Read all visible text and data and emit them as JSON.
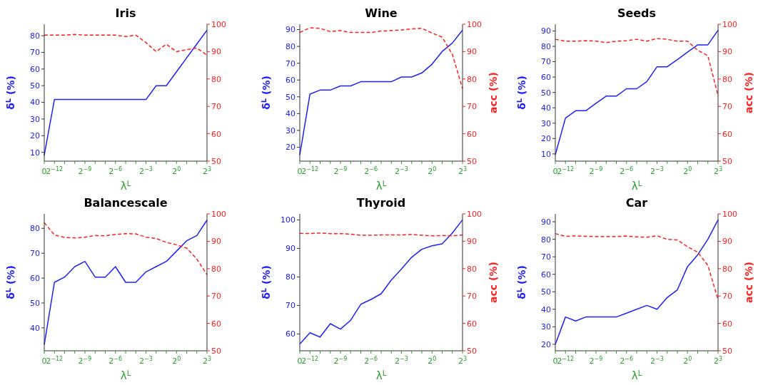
{
  "chart_data": [
    {
      "type": "line",
      "title": "Iris",
      "xlabel": "λ$^{L}$",
      "ylabel": "δ$^{L}$ (%)",
      "categories": [
        "0",
        "2$^{−12}$",
        null,
        null,
        "2$^{−9}$",
        null,
        null,
        "2$^{−6}$",
        null,
        null,
        "2$^{−3}$",
        null,
        null,
        "2$^{0}$",
        null,
        null,
        "2$^{3}$"
      ],
      "ylim": [
        4.7,
        86.9
      ],
      "yticks": [
        10,
        20,
        30,
        40,
        50,
        60,
        70,
        80
      ],
      "y2lim": [
        50,
        100
      ],
      "y2ticks": [
        50,
        60,
        70,
        80,
        90,
        100
      ],
      "grid": false,
      "legend": false,
      "marker": "none",
      "series": [
        {
          "color": "#2020ff",
          "line_style": "solid",
          "values": [
            8.3,
            41.7,
            41.7,
            41.7,
            41.7,
            41.7,
            41.7,
            41.7,
            41.7,
            41.7,
            41.7,
            50,
            50,
            58.3,
            66.7,
            75,
            83.3
          ]
        },
        {
          "color": "#ff2020",
          "line_style": "dashed",
          "axis": "y2",
          "values": [
            96,
            96,
            96,
            96.3,
            96,
            96,
            96,
            96,
            95.5,
            96,
            93.3,
            90,
            92.7,
            90,
            90.7,
            91.3,
            88.7
          ]
        }
      ]
    },
    {
      "type": "line",
      "title": "Wine",
      "xlabel": "λ$^{L}$",
      "ylabel": "δ$^{L}$ (%)",
      "y2label": "acc (%)",
      "categories": [
        "0",
        "2$^{−12}$",
        null,
        null,
        "2$^{−9}$",
        null,
        null,
        "2$^{−6}$",
        null,
        null,
        "2$^{−3}$",
        null,
        null,
        "2$^{0}$",
        null,
        null,
        "2$^{3}$"
      ],
      "ylim": [
        11.7,
        93.2
      ],
      "yticks": [
        20,
        30,
        40,
        50,
        60,
        70,
        80,
        90
      ],
      "y2lim": [
        50,
        100
      ],
      "y2ticks": [
        50,
        60,
        70,
        80,
        90,
        100
      ],
      "grid": false,
      "legend": false,
      "marker": "none",
      "series": [
        {
          "color": "#2020ff",
          "line_style": "solid",
          "values": [
            15.4,
            51.6,
            54,
            54,
            56.5,
            56.5,
            59,
            59,
            59,
            59,
            61.8,
            61.8,
            64.2,
            69.4,
            77,
            82,
            89.7
          ]
        },
        {
          "color": "#ff2020",
          "line_style": "dashed",
          "axis": "y2",
          "values": [
            97,
            98.7,
            98.5,
            97.3,
            97.7,
            97,
            97,
            97,
            97.5,
            97.7,
            97.9,
            98.3,
            98.5,
            96.8,
            95.3,
            89,
            76.5
          ]
        }
      ]
    },
    {
      "type": "line",
      "title": "Seeds",
      "xlabel": "λ$^{L}$",
      "ylabel": "δ$^{L}$ (%)",
      "y2label": "acc (%)",
      "categories": [
        "0",
        "2$^{−12}$",
        null,
        null,
        "2$^{−9}$",
        null,
        null,
        "2$^{−6}$",
        null,
        null,
        "2$^{−3}$",
        null,
        null,
        "2$^{0}$",
        null,
        null,
        "2$^{3}$"
      ],
      "ylim": [
        5.3,
        94.4
      ],
      "yticks": [
        10,
        20,
        30,
        40,
        50,
        60,
        70,
        80,
        90
      ],
      "y2lim": [
        50,
        100
      ],
      "y2ticks": [
        50,
        60,
        70,
        80,
        90,
        100
      ],
      "grid": false,
      "legend": false,
      "marker": "none",
      "series": [
        {
          "color": "#2020ff",
          "line_style": "solid",
          "values": [
            9.5,
            33.3,
            38.1,
            38.1,
            42.9,
            47.6,
            47.6,
            52.4,
            52.4,
            57.1,
            66.7,
            66.7,
            71.4,
            76.2,
            81,
            81,
            90.5
          ]
        },
        {
          "color": "#ff2020",
          "line_style": "dashed",
          "axis": "y2",
          "values": [
            94.5,
            93.8,
            93.8,
            94,
            93.8,
            93.3,
            93.8,
            94,
            94.5,
            93.8,
            94.8,
            94.5,
            93.8,
            93.8,
            90.5,
            88.5,
            73.8
          ]
        }
      ]
    },
    {
      "type": "line",
      "title": "Balancescale",
      "xlabel": "λ$^{L}$",
      "ylabel": "δ$^{L}$ (%)",
      "categories": [
        "0",
        "2$^{−12}$",
        null,
        null,
        "2$^{−9}$",
        null,
        null,
        "2$^{−6}$",
        null,
        null,
        "2$^{−3}$",
        null,
        null,
        "2$^{0}$",
        null,
        null,
        "2$^{3}$"
      ],
      "ylim": [
        30.8,
        85.8
      ],
      "yticks": [
        40,
        50,
        60,
        70,
        80
      ],
      "y2lim": [
        50,
        100
      ],
      "y2ticks": [
        50,
        60,
        70,
        80,
        90,
        100
      ],
      "grid": false,
      "legend": false,
      "marker": "none",
      "series": [
        {
          "color": "#2020ff",
          "line_style": "solid",
          "values": [
            33.3,
            58.3,
            60.4,
            64.6,
            66.7,
            60.4,
            60.4,
            64.6,
            58.3,
            58.3,
            62.5,
            64.6,
            66.7,
            70.8,
            75,
            77.1,
            83.3
          ]
        },
        {
          "color": "#ff2020",
          "line_style": "dashed",
          "axis": "y2",
          "values": [
            96.8,
            92.3,
            91.4,
            91.2,
            91.5,
            92.1,
            92,
            92.5,
            92.8,
            92.7,
            91.5,
            91,
            89.6,
            88.7,
            87.5,
            83.5,
            77.8
          ]
        }
      ]
    },
    {
      "type": "line",
      "title": "Thyroid",
      "xlabel": "λ$^{L}$",
      "ylabel": "δ$^{L}$ (%)",
      "y2label": "acc (%)",
      "categories": [
        "0",
        "2$^{−12}$",
        null,
        null,
        "2$^{−9}$",
        null,
        null,
        "2$^{−6}$",
        null,
        null,
        "2$^{−3}$",
        null,
        null,
        "2$^{0}$",
        null,
        null,
        "2$^{3}$"
      ],
      "ylim": [
        54.1,
        102.1
      ],
      "yticks": [
        60,
        70,
        80,
        90,
        100
      ],
      "y2lim": [
        50,
        100
      ],
      "y2ticks": [
        50,
        60,
        70,
        80,
        90,
        100
      ],
      "grid": false,
      "legend": false,
      "marker": "none",
      "series": [
        {
          "color": "#2020ff",
          "line_style": "solid",
          "values": [
            56.5,
            60.4,
            58.9,
            63.6,
            61.7,
            64.8,
            70.4,
            72.1,
            74.1,
            78.9,
            82.8,
            86.9,
            89.7,
            90.9,
            91.6,
            95.4,
            100
          ]
        },
        {
          "color": "#ff2020",
          "line_style": "dashed",
          "axis": "y2",
          "values": [
            92.9,
            92.8,
            93,
            92.8,
            92.8,
            92.6,
            92.2,
            92.2,
            92.3,
            92.3,
            92.3,
            92.5,
            92.2,
            92,
            92.1,
            92,
            92.3
          ]
        }
      ]
    },
    {
      "type": "line",
      "title": "Car",
      "xlabel": "λ$^{L}$",
      "ylabel": "δ$^{L}$ (%)",
      "y2label": "acc (%)",
      "categories": [
        "0",
        "2$^{−12}$",
        null,
        null,
        "2$^{−9}$",
        null,
        null,
        "2$^{−6}$",
        null,
        null,
        "2$^{−3}$",
        null,
        null,
        "2$^{0}$",
        null,
        null,
        "2$^{3}$"
      ],
      "ylim": [
        16.3,
        94.5
      ],
      "yticks": [
        20,
        30,
        40,
        50,
        60,
        70,
        80,
        90
      ],
      "y2lim": [
        50,
        100
      ],
      "y2ticks": [
        50,
        60,
        70,
        80,
        90,
        100
      ],
      "grid": false,
      "legend": false,
      "marker": "none",
      "series": [
        {
          "color": "#2020ff",
          "line_style": "solid",
          "values": [
            20,
            35.6,
            33.3,
            35.6,
            35.6,
            35.6,
            35.6,
            37.8,
            40,
            42.2,
            40,
            46.7,
            51.1,
            64.4,
            71.1,
            80,
            91.1
          ]
        },
        {
          "color": "#ff2020",
          "line_style": "dashed",
          "axis": "y2",
          "values": [
            92.8,
            91.8,
            92,
            91.8,
            91.7,
            91.7,
            91.7,
            91.9,
            91.6,
            91.5,
            92,
            90.7,
            90.5,
            88,
            86,
            81.2,
            68.7
          ]
        }
      ]
    }
  ]
}
